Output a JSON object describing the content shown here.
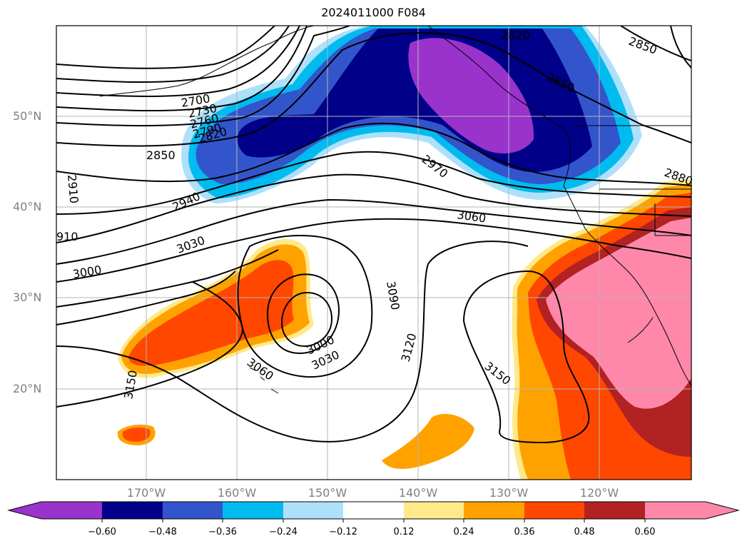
{
  "title": "2024011000 F084",
  "map": {
    "lat_labels": [
      "50°N",
      "40°N",
      "30°N",
      "20°N"
    ],
    "lon_labels": [
      "170°W",
      "160°W",
      "150°W",
      "140°W",
      "130°W",
      "120°W"
    ],
    "contour_labels": [
      "2700",
      "2730",
      "2760",
      "2790",
      "2820",
      "2850",
      "2910",
      "2940",
      "910",
      "3000",
      "3030",
      "2820",
      "2850",
      "2850",
      "2970",
      "3060",
      "2880",
      "3090",
      "3000",
      "3030",
      "3060",
      "3120",
      "3150",
      "3150"
    ]
  },
  "colorbar": {
    "ticks": [
      "−0.60",
      "−0.48",
      "−0.36",
      "−0.24",
      "−0.12",
      "0.12",
      "0.24",
      "0.36",
      "0.48",
      "0.60"
    ],
    "colors": [
      "#9933cc",
      "#000088",
      "#3355cc",
      "#00bbf0",
      "#aee0fa",
      "#ffffff",
      "#ffe98a",
      "#ffa200",
      "#ff4700",
      "#b22222",
      "#ff88aa"
    ]
  }
}
